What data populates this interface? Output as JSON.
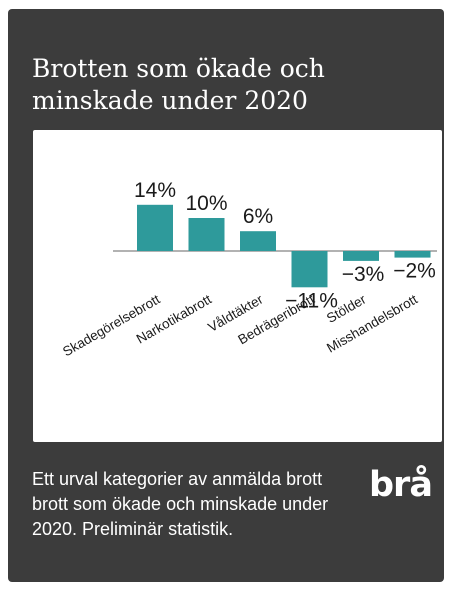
{
  "card": {
    "title": "Brotten som ökade och minskade under 2020",
    "footnote": "Ett urval kategorier av anmälda brott brott som ökade och minskade under 2020. Preliminär statistik.",
    "logo_text": "brå"
  },
  "colors": {
    "card_bg": "#3c3c3c",
    "bar": "#2e9a9b",
    "axis": "#666666",
    "text_dark": "#1a1a1a"
  },
  "chart_data": {
    "type": "bar",
    "categories": [
      "Skadegörelsebrott",
      "Narkotikabrott",
      "Våldtäkter",
      "Bedrägeribrott",
      "Stölder",
      "Misshandelsbrott"
    ],
    "values": [
      14,
      10,
      6,
      -11,
      -3,
      -2
    ],
    "data_labels": [
      "14%",
      "10%",
      "6%",
      "−11%",
      "−3%",
      "−2%"
    ],
    "unit": "%",
    "ylim": [
      -11,
      14
    ],
    "grid": false,
    "title": "",
    "xlabel": "",
    "ylabel": ""
  }
}
